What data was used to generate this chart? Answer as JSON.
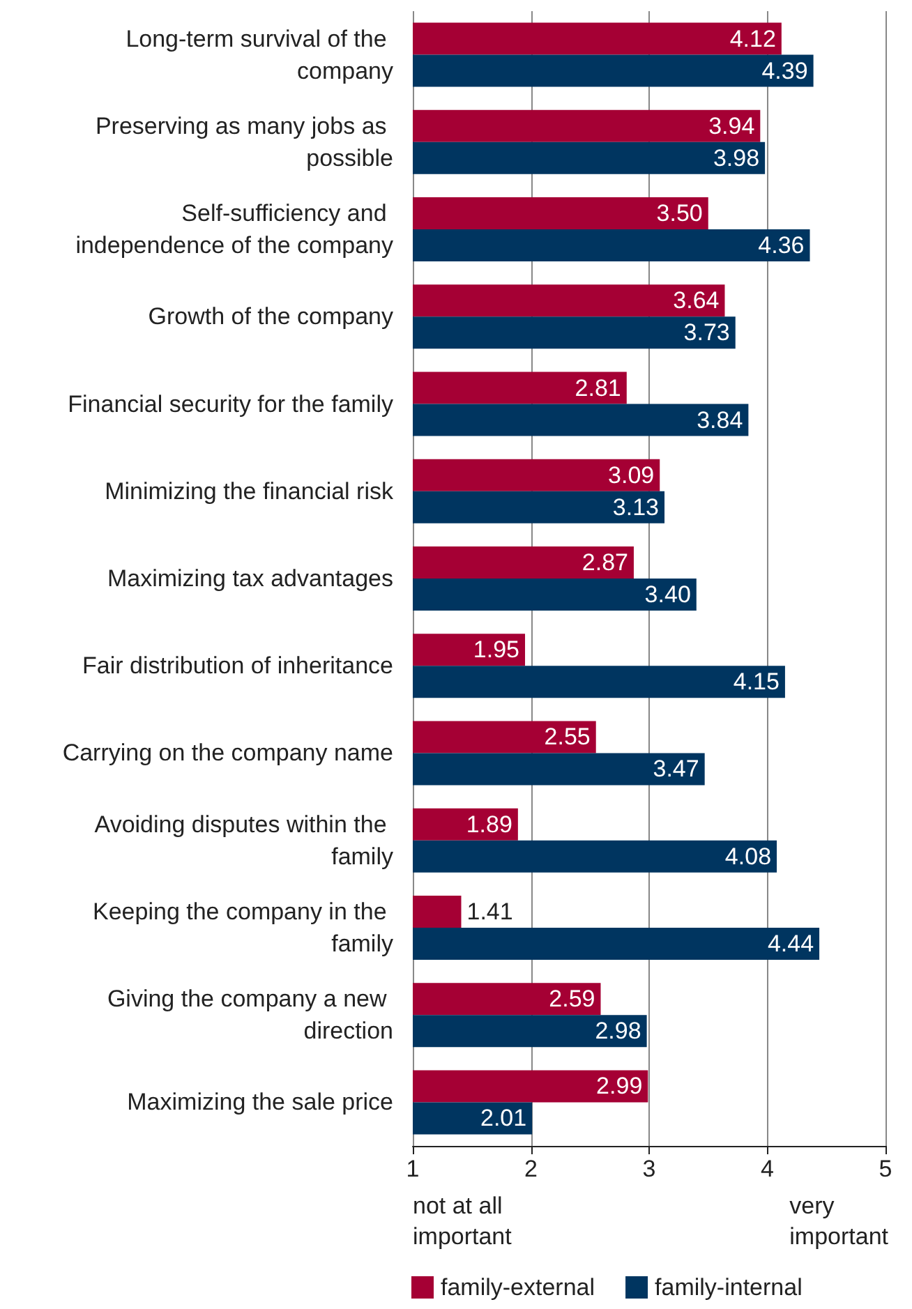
{
  "chart_data": {
    "type": "bar",
    "orientation": "horizontal",
    "categories": [
      "Long-term survival of the company",
      "Preserving as many jobs as possible",
      "Self-sufficiency and independence of the company",
      "Growth of the company",
      "Financial security for the family",
      "Minimizing the financial risk",
      "Maximizing tax advantages",
      "Fair distribution of inheritance",
      "Carrying on the company name",
      "Avoiding disputes within the family",
      "Keeping the company in the family",
      "Giving the company a new direction",
      "Maximizing the sale price"
    ],
    "series": [
      {
        "name": "family-external",
        "color": "#a50034",
        "values": [
          4.12,
          3.94,
          3.5,
          3.64,
          2.81,
          3.09,
          2.87,
          1.95,
          2.55,
          1.89,
          1.41,
          2.59,
          2.99
        ],
        "value_labels": [
          "4.12",
          "3.94",
          "3.50",
          "3.64",
          "2.81",
          "3.09",
          "2.87",
          "1.95",
          "2.55",
          "1.89",
          "1.41",
          "2.59",
          "2.99"
        ]
      },
      {
        "name": "family-internal",
        "color": "#003560",
        "values": [
          4.39,
          3.98,
          4.36,
          3.73,
          3.84,
          3.13,
          3.4,
          4.15,
          3.47,
          4.08,
          4.44,
          2.98,
          2.01
        ],
        "value_labels": [
          "4.39",
          "3.98",
          "4.36",
          "3.73",
          "3.84",
          "3.13",
          "3.40",
          "4.15",
          "3.47",
          "4.08",
          "4.44",
          "2.98",
          "2.01"
        ]
      }
    ],
    "xlim": [
      1,
      5
    ],
    "xticks": [
      1,
      2,
      3,
      4,
      5
    ],
    "grid": "x",
    "legend": "bottom left",
    "annotations": [
      "not at all important",
      "very important"
    ]
  }
}
